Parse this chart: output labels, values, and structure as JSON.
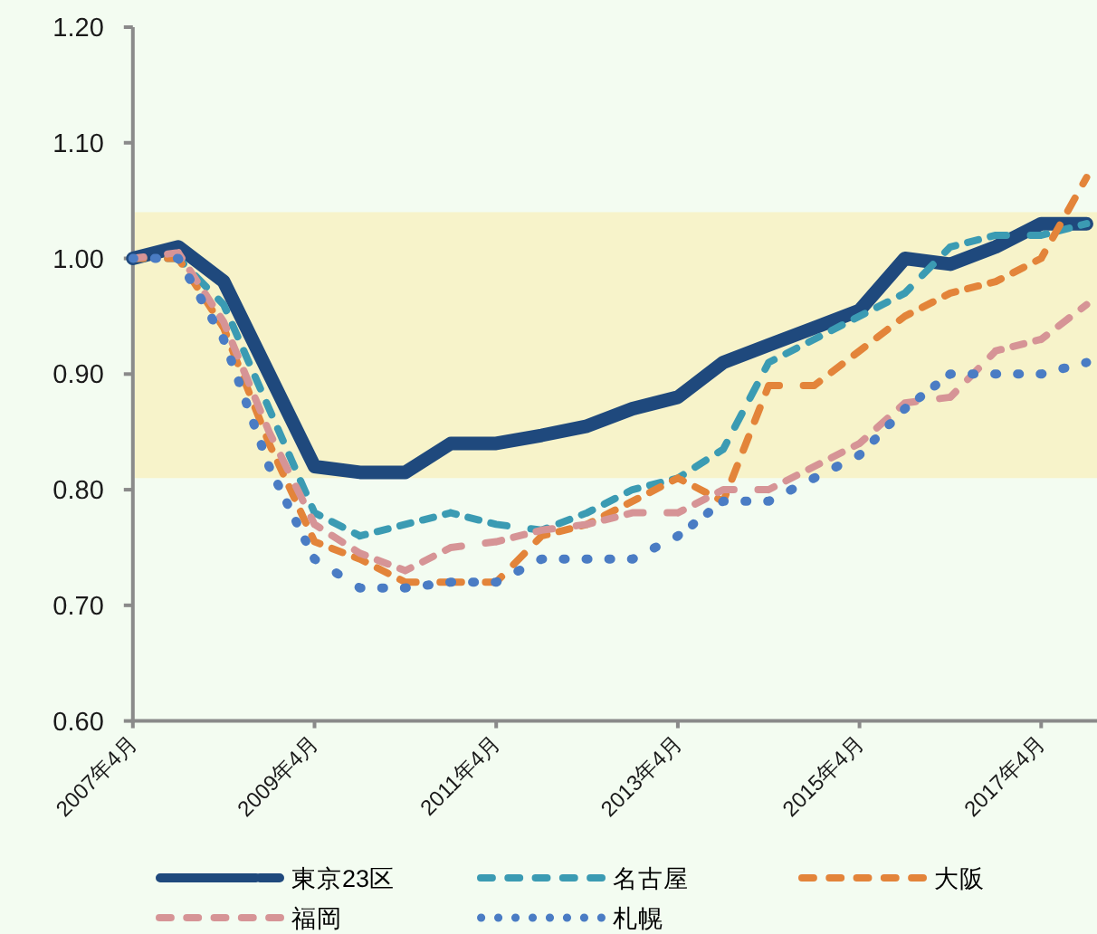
{
  "chart_data": {
    "type": "line",
    "categories": [
      "2007年4月",
      null,
      null,
      null,
      "2009年4月",
      null,
      null,
      null,
      "2011年4月",
      null,
      null,
      null,
      "2013年4月",
      null,
      null,
      null,
      "2015年4月",
      null,
      null,
      null,
      "2017年4月",
      null
    ],
    "series": [
      {
        "name": "東京23区",
        "color": "#1f497d",
        "line_style": "solid",
        "values": [
          1.0,
          1.01,
          0.98,
          0.9,
          0.82,
          0.815,
          0.815,
          0.84,
          0.84,
          0.847,
          0.855,
          0.87,
          0.88,
          0.91,
          0.925,
          0.94,
          0.955,
          1.0,
          0.995,
          1.01,
          1.03,
          1.03
        ]
      },
      {
        "name": "名古屋",
        "color": "#3b9bb3",
        "line_style": "dashed",
        "values": [
          1.0,
          1.0,
          0.96,
          0.87,
          0.78,
          0.76,
          0.77,
          0.78,
          0.77,
          0.765,
          0.78,
          0.8,
          0.81,
          0.835,
          0.91,
          0.93,
          0.95,
          0.97,
          1.01,
          1.02,
          1.02,
          1.03
        ]
      },
      {
        "name": "大阪",
        "color": "#e3843a",
        "line_style": "dashed",
        "values": [
          1.0,
          1.0,
          0.94,
          0.84,
          0.755,
          0.74,
          0.72,
          0.72,
          0.72,
          0.76,
          0.77,
          0.79,
          0.81,
          0.79,
          0.89,
          0.89,
          0.92,
          0.95,
          0.97,
          0.98,
          1.0,
          1.07
        ]
      },
      {
        "name": "福岡",
        "color": "#d69496",
        "line_style": "dashed",
        "values": [
          1.0,
          1.005,
          0.945,
          0.85,
          0.77,
          0.745,
          0.73,
          0.75,
          0.755,
          0.765,
          0.77,
          0.78,
          0.78,
          0.8,
          0.8,
          0.82,
          0.84,
          0.875,
          0.88,
          0.92,
          0.93,
          0.96
        ]
      },
      {
        "name": "札幌",
        "color": "#4a7cc4",
        "line_style": "dotted",
        "values": [
          1.0,
          1.0,
          0.93,
          0.82,
          0.74,
          0.715,
          0.715,
          0.72,
          0.72,
          0.74,
          0.74,
          0.74,
          0.76,
          0.79,
          0.79,
          0.81,
          0.83,
          0.87,
          0.9,
          0.9,
          0.9,
          0.91
        ]
      }
    ],
    "ylim": [
      0.6,
      1.2
    ],
    "yticks": [
      {
        "value": 0.6,
        "label": "0.60"
      },
      {
        "value": 0.7,
        "label": "0.70"
      },
      {
        "value": 0.8,
        "label": "0.80"
      },
      {
        "value": 0.9,
        "label": "0.90"
      },
      {
        "value": 1.0,
        "label": "1.00"
      },
      {
        "value": 1.1,
        "label": "1.10"
      },
      {
        "value": 1.2,
        "label": "1.20"
      }
    ],
    "bands": [
      {
        "axis": "y",
        "from": 0.81,
        "to": 1.04,
        "color": "#f7f3ca"
      }
    ],
    "legend": "bottom",
    "grid": false,
    "marker": "none"
  }
}
